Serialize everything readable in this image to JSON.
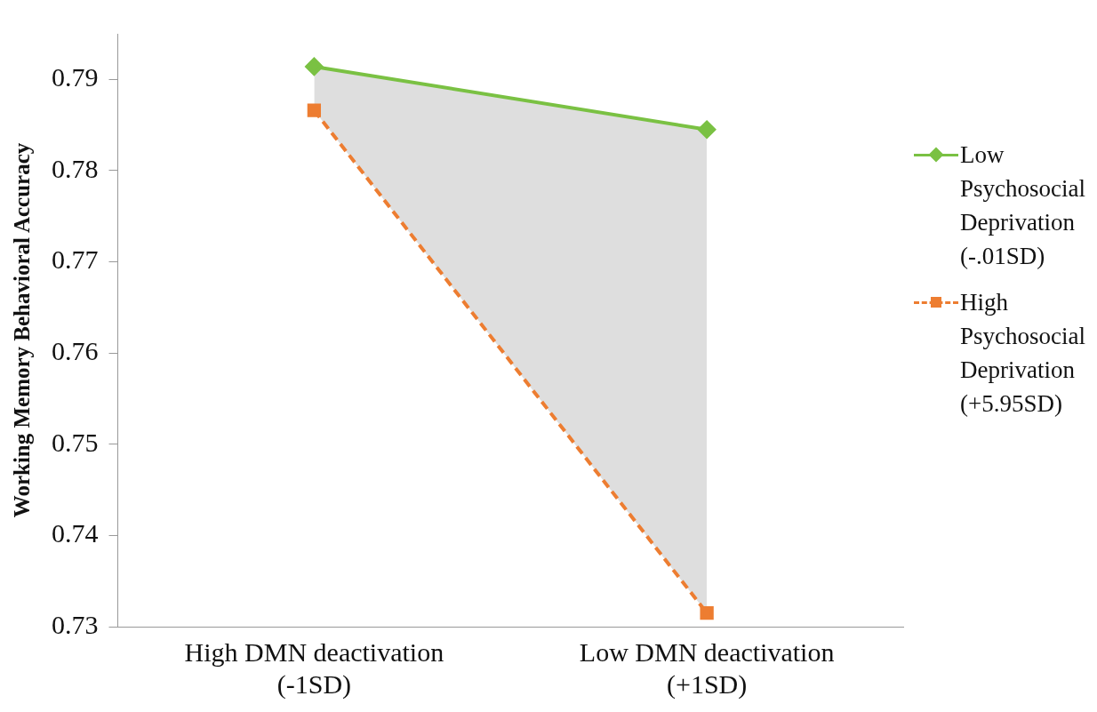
{
  "chart_data": {
    "type": "line",
    "ylabel": "Working Memory Behavioral Accuracy",
    "categories": [
      "High DMN deactivation (-1SD)",
      "Low DMN deactivation (+1SD)"
    ],
    "series": [
      {
        "name": "Low Psychosocial Deprivation (-.01SD)",
        "color": "#7ac143",
        "values": [
          0.7914,
          0.7845
        ],
        "marker": "diamond",
        "line_style": "solid",
        "lower": [
          0.7866,
          0.7315
        ],
        "upper": [
          0.7914,
          0.7845
        ]
      },
      {
        "name": "High Psychosocial Deprivation (+5.95SD)",
        "color": "#ed7d31",
        "values": [
          0.7866,
          0.7315
        ],
        "marker": "square",
        "line_style": "dashed"
      }
    ],
    "ylim": [
      0.73,
      0.795
    ],
    "yticks": [
      0.73,
      0.74,
      0.75,
      0.76,
      0.77,
      0.78,
      0.79
    ],
    "grid": false,
    "legend": "right"
  }
}
